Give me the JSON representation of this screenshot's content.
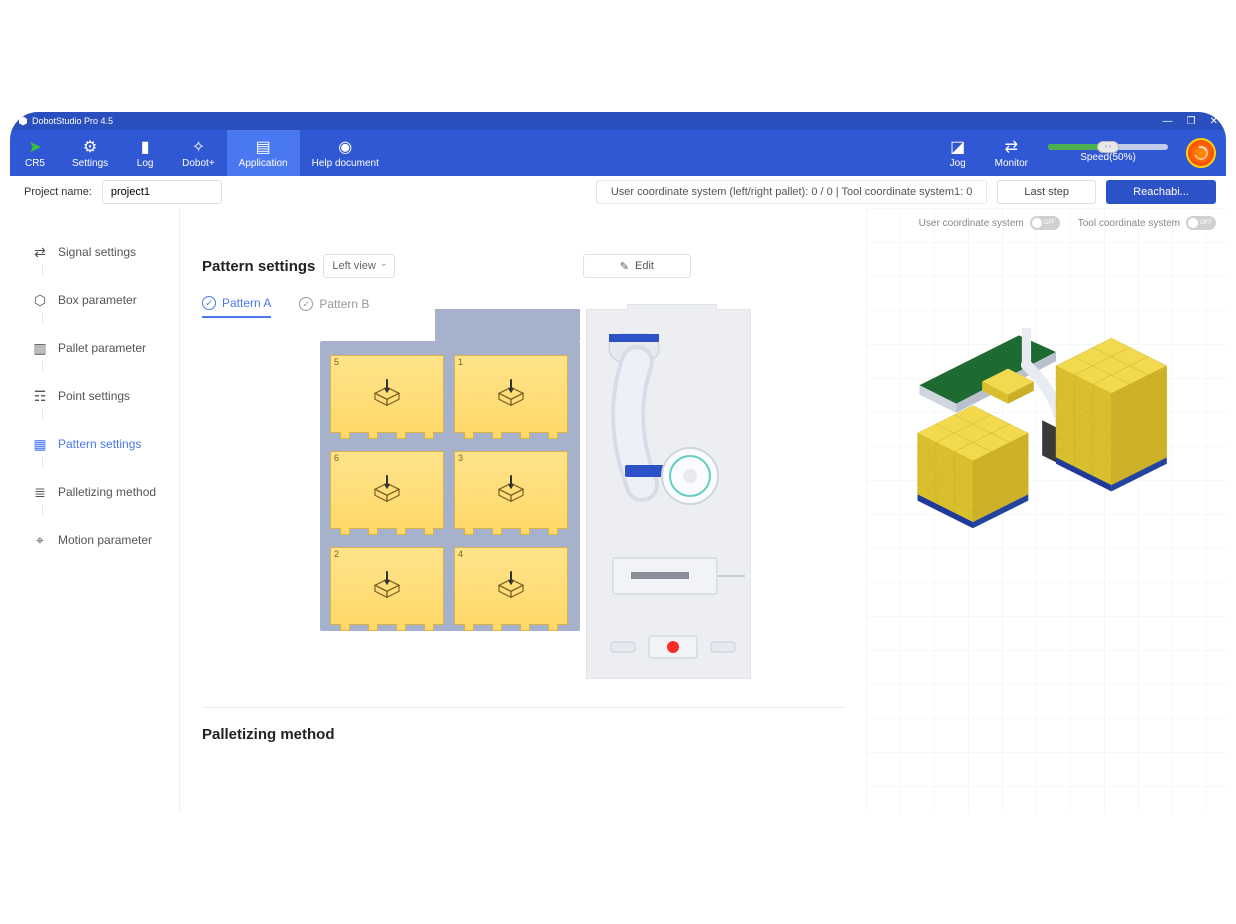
{
  "window": {
    "title": "DobotStudio Pro 4.5"
  },
  "toolbar": {
    "robot": "CR5",
    "settings": "Settings",
    "log": "Log",
    "dobot_plus": "Dobot+",
    "application": "Application",
    "help": "Help document",
    "jog": "Jog",
    "monitor": "Monitor",
    "speed_label": "Speed(50%)",
    "speed_percent": 50,
    "accent_color": "#3058d4",
    "active_color": "#4a78f0",
    "arrow_color": "#35c435"
  },
  "projectbar": {
    "label": "Project name:",
    "value": "project1",
    "coord_readout": "User coordinate system (left/right pallet): 0 / 0 | Tool coordinate system1: 0",
    "last_step": "Last step",
    "reachability": "Reachabi..."
  },
  "coord_toggles": {
    "user_label": "User coordinate system",
    "tool_label": "Tool coordinate system",
    "off_text": "OFF"
  },
  "sidebar": {
    "items": [
      {
        "label": "Signal settings",
        "icon": "arrows"
      },
      {
        "label": "Box parameter",
        "icon": "cube"
      },
      {
        "label": "Pallet parameter",
        "icon": "bars"
      },
      {
        "label": "Point settings",
        "icon": "sliders"
      },
      {
        "label": "Pattern settings",
        "icon": "grid"
      },
      {
        "label": "Palletizing method",
        "icon": "layers"
      },
      {
        "label": "Motion parameter",
        "icon": "pin"
      }
    ],
    "active_index": 4
  },
  "pattern": {
    "title": "Pattern settings",
    "view": "Left view",
    "edit": "Edit",
    "tabs": [
      {
        "label": "Pattern A",
        "active": true
      },
      {
        "label": "Pattern B",
        "active": false
      }
    ],
    "boxes": [
      {
        "n": "5",
        "col": 0,
        "row": 0
      },
      {
        "n": "1",
        "col": 1,
        "row": 0
      },
      {
        "n": "6",
        "col": 0,
        "row": 1
      },
      {
        "n": "3",
        "col": 1,
        "row": 1
      },
      {
        "n": "2",
        "col": 0,
        "row": 2
      },
      {
        "n": "4",
        "col": 1,
        "row": 2
      }
    ],
    "box_color_top": "#ffe38a",
    "box_color_bottom": "#ffd96a",
    "box_border": "#d8b24e",
    "pallet_bg": "#a6b1cc",
    "robot_bg": "#eceef2"
  },
  "palletizing": {
    "title": "Palletizing method"
  },
  "view3d": {
    "box_color": "#f2d94e",
    "box_color_dark": "#d9bf2e",
    "pallet_color": "#2d52c8",
    "conveyor_color": "#1d6b33",
    "robot_color": "#eef0f4"
  }
}
